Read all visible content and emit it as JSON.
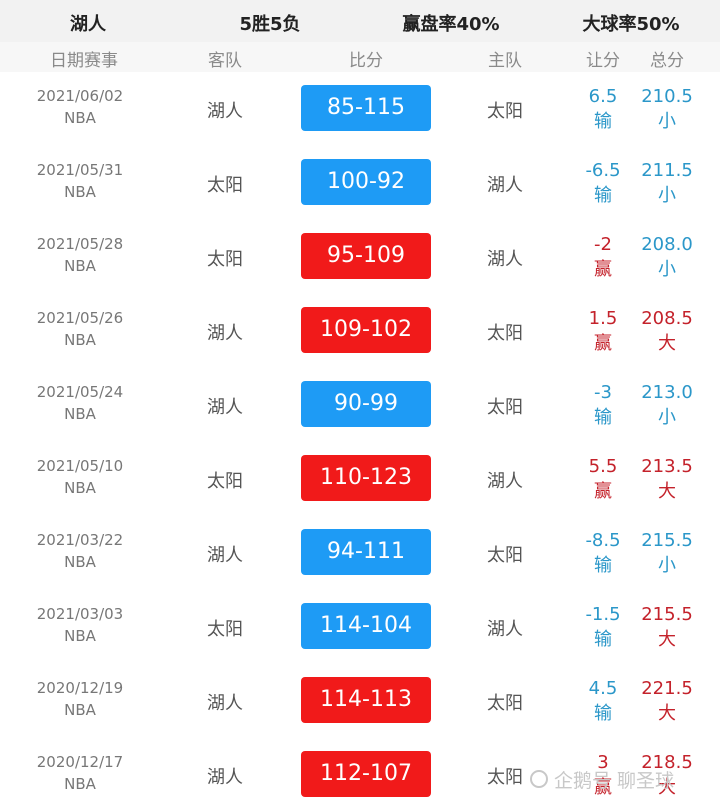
{
  "summary": {
    "team": "湖人",
    "record": "5胜5负",
    "cover_rate": "赢盘率40%",
    "over_rate": "大球率50%"
  },
  "columns": {
    "date": "日期赛事",
    "away": "客队",
    "score": "比分",
    "home": "主队",
    "handicap": "让分",
    "total": "总分"
  },
  "games": [
    {
      "date": "2021/06/02",
      "league": "NBA",
      "away": "湖人",
      "score": "85-115",
      "home": "太阳",
      "handicap": "6.5",
      "ats": "输",
      "total": "210.5",
      "ou": "小",
      "result": "loss"
    },
    {
      "date": "2021/05/31",
      "league": "NBA",
      "away": "太阳",
      "score": "100-92",
      "home": "湖人",
      "handicap": "-6.5",
      "ats": "输",
      "total": "211.5",
      "ou": "小",
      "result": "loss"
    },
    {
      "date": "2021/05/28",
      "league": "NBA",
      "away": "太阳",
      "score": "95-109",
      "home": "湖人",
      "handicap": "-2",
      "ats": "赢",
      "total": "208.0",
      "ou": "小",
      "result": "win"
    },
    {
      "date": "2021/05/26",
      "league": "NBA",
      "away": "湖人",
      "score": "109-102",
      "home": "太阳",
      "handicap": "1.5",
      "ats": "赢",
      "total": "208.5",
      "ou": "大",
      "result": "win"
    },
    {
      "date": "2021/05/24",
      "league": "NBA",
      "away": "湖人",
      "score": "90-99",
      "home": "太阳",
      "handicap": "-3",
      "ats": "输",
      "total": "213.0",
      "ou": "小",
      "result": "loss"
    },
    {
      "date": "2021/05/10",
      "league": "NBA",
      "away": "太阳",
      "score": "110-123",
      "home": "湖人",
      "handicap": "5.5",
      "ats": "赢",
      "total": "213.5",
      "ou": "大",
      "result": "win"
    },
    {
      "date": "2021/03/22",
      "league": "NBA",
      "away": "湖人",
      "score": "94-111",
      "home": "太阳",
      "handicap": "-8.5",
      "ats": "输",
      "total": "215.5",
      "ou": "小",
      "result": "loss"
    },
    {
      "date": "2021/03/03",
      "league": "NBA",
      "away": "太阳",
      "score": "114-104",
      "home": "湖人",
      "handicap": "-1.5",
      "ats": "输",
      "total": "215.5",
      "ou": "大",
      "result": "loss"
    },
    {
      "date": "2020/12/19",
      "league": "NBA",
      "away": "湖人",
      "score": "114-113",
      "home": "太阳",
      "handicap": "4.5",
      "ats": "输",
      "total": "221.5",
      "ou": "大",
      "result": "win"
    },
    {
      "date": "2020/12/17",
      "league": "NBA",
      "away": "湖人",
      "score": "112-107",
      "home": "太阳",
      "handicap": "3",
      "ats": "赢",
      "total": "218.5",
      "ou": "大",
      "result": "win"
    }
  ],
  "watermark": "企鹅号 聊圣球",
  "colors": {
    "loss_bg": "#1e9bf5",
    "win_bg": "#f11a1a",
    "text_blue": "#2b97c9",
    "text_red": "#c4222b"
  }
}
